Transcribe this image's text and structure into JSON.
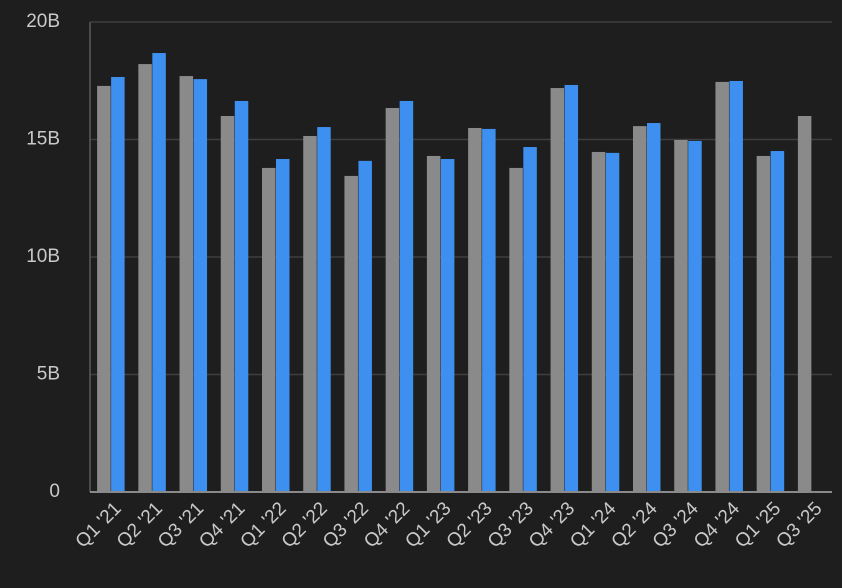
{
  "chart_data": {
    "type": "bar",
    "categories": [
      "Q1 '21",
      "Q2 '21",
      "Q3 '21",
      "Q4 '21",
      "Q1 '22",
      "Q2 '22",
      "Q3 '22",
      "Q4 '22",
      "Q1 '23",
      "Q2 '23",
      "Q3 '23",
      "Q4 '23",
      "Q1 '24",
      "Q2 '24",
      "Q3 '24",
      "Q4 '24",
      "Q1 '25",
      "Q3 '25"
    ],
    "series": [
      {
        "color": "#8a8a8a",
        "values": [
          17.28,
          18.21,
          17.7,
          16.0,
          13.79,
          15.15,
          13.45,
          16.34,
          14.3,
          15.49,
          13.79,
          17.19,
          14.47,
          15.57,
          14.98,
          17.45,
          14.3,
          16.0
        ]
      },
      {
        "color": "#3d8ff0",
        "values": [
          17.66,
          18.68,
          17.57,
          16.64,
          14.17,
          15.53,
          14.09,
          16.64,
          14.17,
          15.45,
          14.68,
          17.32,
          14.43,
          15.7,
          14.94,
          17.49,
          14.51,
          null
        ]
      }
    ],
    "ylim": [
      0,
      20
    ],
    "yticks": [
      0,
      {
        "value": 5,
        "label": "5B"
      },
      {
        "value": 10,
        "label": "10B"
      },
      {
        "value": 15,
        "label": "15B"
      },
      {
        "value": 20,
        "label": "20B"
      }
    ],
    "grid": true
  }
}
